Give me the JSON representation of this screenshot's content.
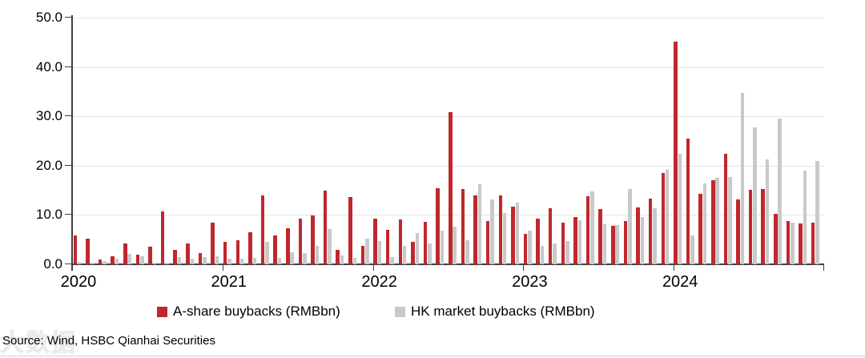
{
  "chart_data": {
    "type": "bar",
    "title": "",
    "categories": [
      "2020-01",
      "2020-02",
      "2020-03",
      "2020-04",
      "2020-05",
      "2020-06",
      "2020-07",
      "2020-08",
      "2020-09",
      "2020-10",
      "2020-11",
      "2020-12",
      "2021-01",
      "2021-02",
      "2021-03",
      "2021-04",
      "2021-05",
      "2021-06",
      "2021-07",
      "2021-08",
      "2021-09",
      "2021-10",
      "2021-11",
      "2021-12",
      "2022-01",
      "2022-02",
      "2022-03",
      "2022-04",
      "2022-05",
      "2022-06",
      "2022-07",
      "2022-08",
      "2022-09",
      "2022-10",
      "2022-11",
      "2022-12",
      "2023-01",
      "2023-02",
      "2023-03",
      "2023-04",
      "2023-05",
      "2023-06",
      "2023-07",
      "2023-08",
      "2023-09",
      "2023-10",
      "2023-11",
      "2023-12",
      "2024-01",
      "2024-02",
      "2024-03",
      "2024-04",
      "2024-05",
      "2024-06",
      "2024-07",
      "2024-08",
      "2024-09",
      "2024-10",
      "2024-11",
      "2024-12"
    ],
    "series": [
      {
        "name": "A-share buybacks (RMBbn)",
        "color": "#c0272d",
        "values": [
          5.8,
          5.2,
          1.0,
          1.7,
          4.3,
          2.0,
          3.6,
          10.7,
          3.0,
          4.3,
          2.3,
          8.5,
          4.6,
          4.9,
          6.5,
          14.0,
          5.9,
          7.3,
          9.3,
          9.9,
          14.9,
          2.9,
          13.6,
          3.7,
          9.3,
          7.0,
          9.1,
          4.6,
          8.6,
          15.5,
          30.9,
          15.3,
          13.9,
          8.8,
          14.0,
          11.7,
          6.1,
          9.2,
          11.3,
          8.4,
          9.6,
          13.8,
          11.2,
          7.8,
          8.8,
          11.5,
          13.4,
          18.5,
          45.1,
          25.5,
          14.3,
          17.0,
          22.4,
          13.2,
          15.1,
          15.2,
          10.3,
          8.8,
          8.3,
          8.5
        ]
      },
      {
        "name": "HK market buybacks (RMBbn)",
        "color": "#c9c9c9",
        "values": [
          0.5,
          0.3,
          0.6,
          1.1,
          2.1,
          1.6,
          0.3,
          0.3,
          1.4,
          1.2,
          1.5,
          1.7,
          1.1,
          1.2,
          1.3,
          4.6,
          1.3,
          2.5,
          2.2,
          3.7,
          7.2,
          1.8,
          1.3,
          5.2,
          4.7,
          1.4,
          3.7,
          6.4,
          4.2,
          6.8,
          7.6,
          4.9,
          16.3,
          13.1,
          10.4,
          12.5,
          6.8,
          3.8,
          4.2,
          4.7,
          9.0,
          14.8,
          8.1,
          7.9,
          15.2,
          9.6,
          11.3,
          19.2,
          22.4,
          5.9,
          16.4,
          17.6,
          17.7,
          34.7,
          27.8,
          21.3,
          29.5,
          8.4,
          19.0,
          21.0
        ]
      }
    ],
    "ylim": [
      0,
      50
    ],
    "ytick_step": 10,
    "ytick_labels": [
      "0.0",
      "10.0",
      "20.0",
      "30.0",
      "40.0",
      "50.0"
    ],
    "x_year_labels": [
      "2020",
      "2021",
      "2022",
      "2023",
      "2024"
    ],
    "grid": true,
    "legend_position": "bottom"
  },
  "legend": {
    "a_share_label": "A-share buybacks (RMBbn)",
    "hk_label": "HK market buybacks (RMBbn)"
  },
  "footer": {
    "source": "Source: Wind, HSBC Qianhai Securities",
    "watermark_text": "大数据"
  },
  "colors": {
    "a_share": "#c0272d",
    "hk": "#c9c9c9",
    "grid": "#e4e4e4",
    "axis": "#404040"
  }
}
